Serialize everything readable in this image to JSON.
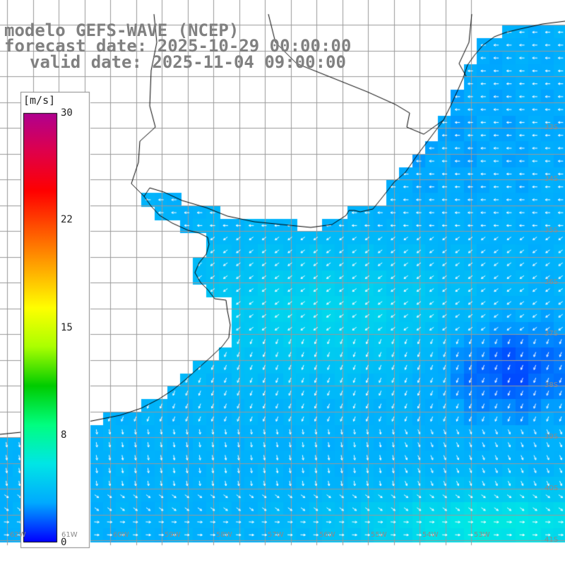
{
  "title": {
    "model": "modelo GEFS-WAVE (NCEP)",
    "forecast": "forecast date: 2025-10-29 00:00:00",
    "valid": "valid date: 2025-11-04 09:00:00"
  },
  "colorbar": {
    "unit": "[m/s]",
    "ticks": [
      "30",
      "22",
      "15",
      "8",
      "0"
    ],
    "tick_values": [
      30,
      22,
      15,
      8,
      0
    ],
    "min": 0,
    "max": 30,
    "colors": [
      "#0000ff",
      "#00aaff",
      "#00e6e6",
      "#00ff80",
      "#00cc00",
      "#aaff00",
      "#ffff00",
      "#ffaa00",
      "#ff5500",
      "#ff0000",
      "#e0004a",
      "#b00090"
    ]
  },
  "lat_labels": [
    {
      "label": "33S",
      "lat": -33
    },
    {
      "label": "34S",
      "lat": -34
    },
    {
      "label": "35S",
      "lat": -35
    },
    {
      "label": "36S",
      "lat": -36
    },
    {
      "label": "37S",
      "lat": -37
    },
    {
      "label": "38S",
      "lat": -38
    },
    {
      "label": "39S",
      "lat": -39
    },
    {
      "label": "40S",
      "lat": -40
    },
    {
      "label": "41S",
      "lat": -41
    }
  ],
  "lon_labels": [
    {
      "label": "62W",
      "lon": -62
    },
    {
      "label": "61W",
      "lon": -61
    },
    {
      "label": "60W",
      "lon": -60
    },
    {
      "label": "59W",
      "lon": -59
    },
    {
      "label": "58W",
      "lon": -58
    },
    {
      "label": "57W",
      "lon": -57
    },
    {
      "label": "56W",
      "lon": -56
    },
    {
      "label": "55W",
      "lon": -55
    },
    {
      "label": "54W",
      "lon": -54
    },
    {
      "label": "53W",
      "lon": -53
    }
  ],
  "map": {
    "lon_range": [
      -62.2,
      -52.8
    ],
    "lat_range": [
      -41.2,
      -30.6
    ],
    "grid": true,
    "land_color": "#ffffff",
    "coast_color": "#000000",
    "grid_color": "#999999",
    "arrow_color": "#ffffff"
  }
}
